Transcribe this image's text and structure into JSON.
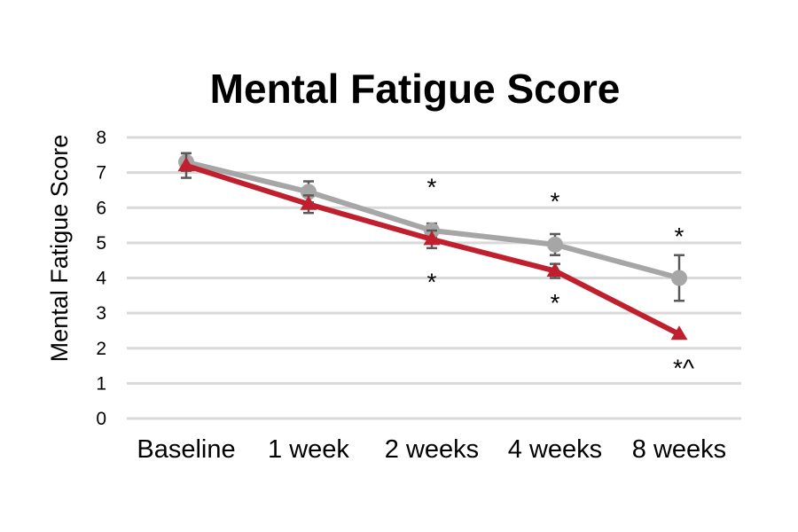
{
  "chart_data": {
    "type": "line",
    "title": "Mental Fatigue Score",
    "ylabel": "Mental Fatigue Score",
    "xlabel": "",
    "ylim": [
      0,
      8
    ],
    "yticks": [
      "0",
      "1",
      "2",
      "3",
      "4",
      "5",
      "6",
      "7",
      "8"
    ],
    "grid": true,
    "categories": [
      "Baseline",
      "1 week",
      "2 weeks",
      "4 weeks",
      "8 weeks"
    ],
    "series": [
      {
        "marker": "circle",
        "color": "#a6a6a6",
        "values": [
          7.3,
          6.45,
          5.35,
          4.95,
          4.0
        ],
        "error": [
          0.25,
          0.3,
          0.2,
          0.3,
          0.65
        ]
      },
      {
        "marker": "triangle",
        "color": "#c0202e",
        "values": [
          7.2,
          6.1,
          5.1,
          4.2,
          2.4
        ],
        "error": [
          0.35,
          0.25,
          0.25,
          0.2,
          0.0
        ]
      }
    ],
    "annotations": [
      {
        "category": "2 weeks",
        "text": "*",
        "y": 6.6
      },
      {
        "category": "2 weeks",
        "text": "*",
        "y": 3.9
      },
      {
        "category": "4 weeks",
        "text": "*",
        "y": 6.2
      },
      {
        "category": "4 weeks",
        "text": "*",
        "y": 3.3
      },
      {
        "category": "8 weeks",
        "text": "*",
        "y": 5.2
      },
      {
        "category": "8 weeks",
        "text": "*^",
        "y": 1.45
      }
    ]
  }
}
